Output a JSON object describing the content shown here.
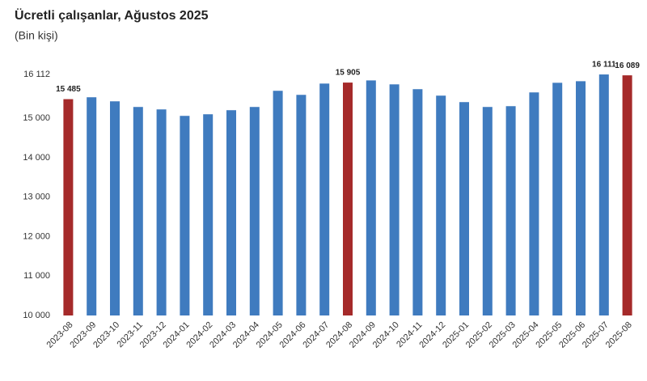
{
  "chart_data": {
    "type": "bar",
    "title": "Ücretli çalışanlar, Ağustos 2025",
    "subtitle": "(Bin kişi)",
    "categories": [
      "2023-08",
      "2023-09",
      "2023-10",
      "2023-11",
      "2023-12",
      "2024-01",
      "2024-02",
      "2024-03",
      "2024-04",
      "2024-05",
      "2024-06",
      "2024-07",
      "2024-08",
      "2024-09",
      "2024-10",
      "2024-11",
      "2024-12",
      "2025-01",
      "2025-02",
      "2025-03",
      "2025-04",
      "2025-05",
      "2025-06",
      "2025-07",
      "2025-08"
    ],
    "values": [
      15485,
      15533,
      15430,
      15287,
      15225,
      15061,
      15102,
      15205,
      15287,
      15697,
      15594,
      15880,
      15905,
      15960,
      15860,
      15738,
      15574,
      15410,
      15287,
      15307,
      15656,
      15900,
      15940,
      16111,
      16089
    ],
    "value_labels": [
      "15 485",
      null,
      null,
      null,
      null,
      null,
      null,
      null,
      null,
      null,
      null,
      null,
      "15 905",
      null,
      null,
      null,
      null,
      null,
      null,
      null,
      null,
      null,
      null,
      "16 111",
      "16 089"
    ],
    "colors": [
      "#a52a2a",
      "#3f7bbf",
      "#3f7bbf",
      "#3f7bbf",
      "#3f7bbf",
      "#3f7bbf",
      "#3f7bbf",
      "#3f7bbf",
      "#3f7bbf",
      "#3f7bbf",
      "#3f7bbf",
      "#3f7bbf",
      "#a52a2a",
      "#3f7bbf",
      "#3f7bbf",
      "#3f7bbf",
      "#3f7bbf",
      "#3f7bbf",
      "#3f7bbf",
      "#3f7bbf",
      "#3f7bbf",
      "#3f7bbf",
      "#3f7bbf",
      "#3f7bbf",
      "#a52a2a"
    ],
    "ylim": [
      10000,
      16112
    ],
    "yticks": [
      {
        "value": 10000,
        "label": "10 000"
      },
      {
        "value": 11000,
        "label": "11 000"
      },
      {
        "value": 12000,
        "label": "12 000"
      },
      {
        "value": 13000,
        "label": "13 000"
      },
      {
        "value": 14000,
        "label": "14 000"
      },
      {
        "value": 15000,
        "label": "15 000"
      },
      {
        "value": 16112,
        "label": "16 112"
      }
    ],
    "grid": false
  }
}
